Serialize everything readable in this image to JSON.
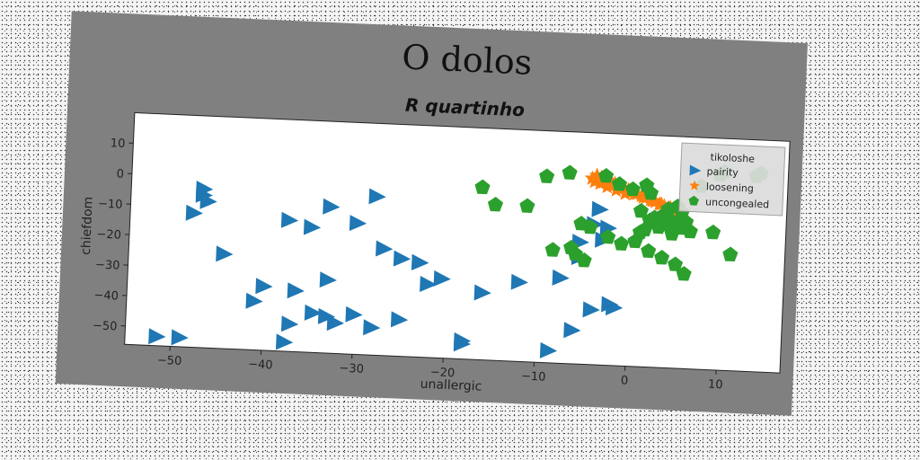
{
  "figure": {
    "suptitle": "O dolos",
    "colors": {
      "panel": "#808080",
      "axes_bg": "#ffffff",
      "pairity": "#1f77b4",
      "loosening": "#ff7f0e",
      "uncongealed": "#2ca02c",
      "legend_bg": "#dcdcdc"
    }
  },
  "chart_data": {
    "type": "scatter",
    "title": "R quartinho",
    "xlabel": "unallergic",
    "ylabel": "chiefdom",
    "xlim": [
      -55,
      17
    ],
    "ylim": [
      -56,
      20
    ],
    "xticks": [
      -50,
      -40,
      -30,
      -20,
      -10,
      0,
      10
    ],
    "yticks": [
      10,
      0,
      -10,
      -20,
      -30,
      -40,
      -50
    ],
    "grid": false,
    "legend": {
      "title": "tikoloshe",
      "placement": "top-right"
    },
    "series": [
      {
        "name": "pairity",
        "marker": "triangle-right",
        "x": [
          -47,
          -47,
          -46.5,
          -48,
          -44.5,
          -37.5,
          -35,
          -33,
          -28,
          -30,
          -27,
          -25,
          -23,
          -22,
          -23,
          -20.5,
          -16,
          -12,
          -7.5,
          -6,
          -4,
          -2.5,
          -3,
          -3.5,
          -4,
          -5.5,
          -2,
          -1.5,
          -5.5,
          -8.5,
          -18,
          -18,
          -28,
          -25,
          -30,
          -32,
          -33,
          -33,
          -36.5,
          -37,
          -37.5,
          -34.5,
          -41,
          -40,
          -51.5,
          -49
        ],
        "y": [
          -4,
          -6,
          -8,
          -12,
          -25,
          -13,
          -15,
          -8,
          -4,
          -13,
          -21,
          -24,
          -25,
          -32,
          -25,
          -30,
          -34,
          -30,
          -28,
          -45,
          -38,
          -11,
          -15,
          -5,
          -10,
          -16,
          -36,
          -37,
          -21,
          -52,
          -50,
          -51,
          -47,
          -44,
          -43,
          -46,
          -44,
          -32,
          -36,
          -47,
          -53,
          -43,
          -40,
          -35,
          -53,
          -53
        ]
      },
      {
        "name": "loosening",
        "marker": "star",
        "x": [
          -4,
          -3.5,
          -3,
          -2.5,
          -2,
          -1.5,
          -1,
          -0.5,
          0,
          0.5,
          1,
          1.5,
          2,
          2.5,
          3,
          3.5,
          4,
          4.5,
          5,
          -4.5,
          -3.8,
          -3.2,
          -2.2,
          -1.2,
          0.2,
          1.2,
          2.2,
          3.2,
          4.2,
          5.2,
          -4.2,
          -3.6,
          -2.8,
          -1.8,
          -0.8
        ],
        "y": [
          6,
          5.4,
          4.8,
          4.2,
          3.6,
          3,
          2.4,
          1.8,
          1.2,
          0.6,
          0,
          -0.6,
          -1.2,
          -1.8,
          -2.4,
          -3,
          -3.6,
          -4.2,
          -4.8,
          5,
          4.6,
          4,
          3,
          2,
          0.5,
          -0.5,
          -1.5,
          -2.5,
          -3.5,
          -4.5,
          4,
          3.5,
          2.5,
          1.5,
          0.5
        ]
      },
      {
        "name": "uncongealed",
        "marker": "pentagon",
        "x": [
          -16.5,
          -15,
          -11.5,
          -9.5,
          -7,
          -3,
          -1.5,
          0,
          1.5,
          2,
          1,
          4.5,
          5.5,
          4.5,
          4,
          5,
          3,
          2,
          1.5,
          1,
          2.5,
          3.5,
          4,
          5.5,
          6,
          6.5,
          9,
          11,
          10,
          13.5,
          14,
          9.5,
          7.5,
          6,
          5,
          3.5,
          2,
          0.5,
          -1,
          -2.5,
          -4.5,
          -5,
          -6,
          -8.5,
          -6.5,
          -5.5
        ],
        "y": [
          0.5,
          -5,
          -5,
          5,
          6.5,
          6,
          3.5,
          2,
          3.5,
          1,
          -5,
          -8,
          -10,
          -12,
          -9,
          -3,
          -10,
          -8,
          -11,
          -12,
          -7,
          -6,
          -4,
          -5,
          -8,
          -11,
          -11,
          -18,
          9,
          8,
          9,
          8,
          4,
          -25,
          -22,
          -20,
          -18,
          -15,
          -16,
          -14,
          -11,
          -22,
          -20,
          -19,
          -18,
          -10
        ]
      }
    ]
  }
}
